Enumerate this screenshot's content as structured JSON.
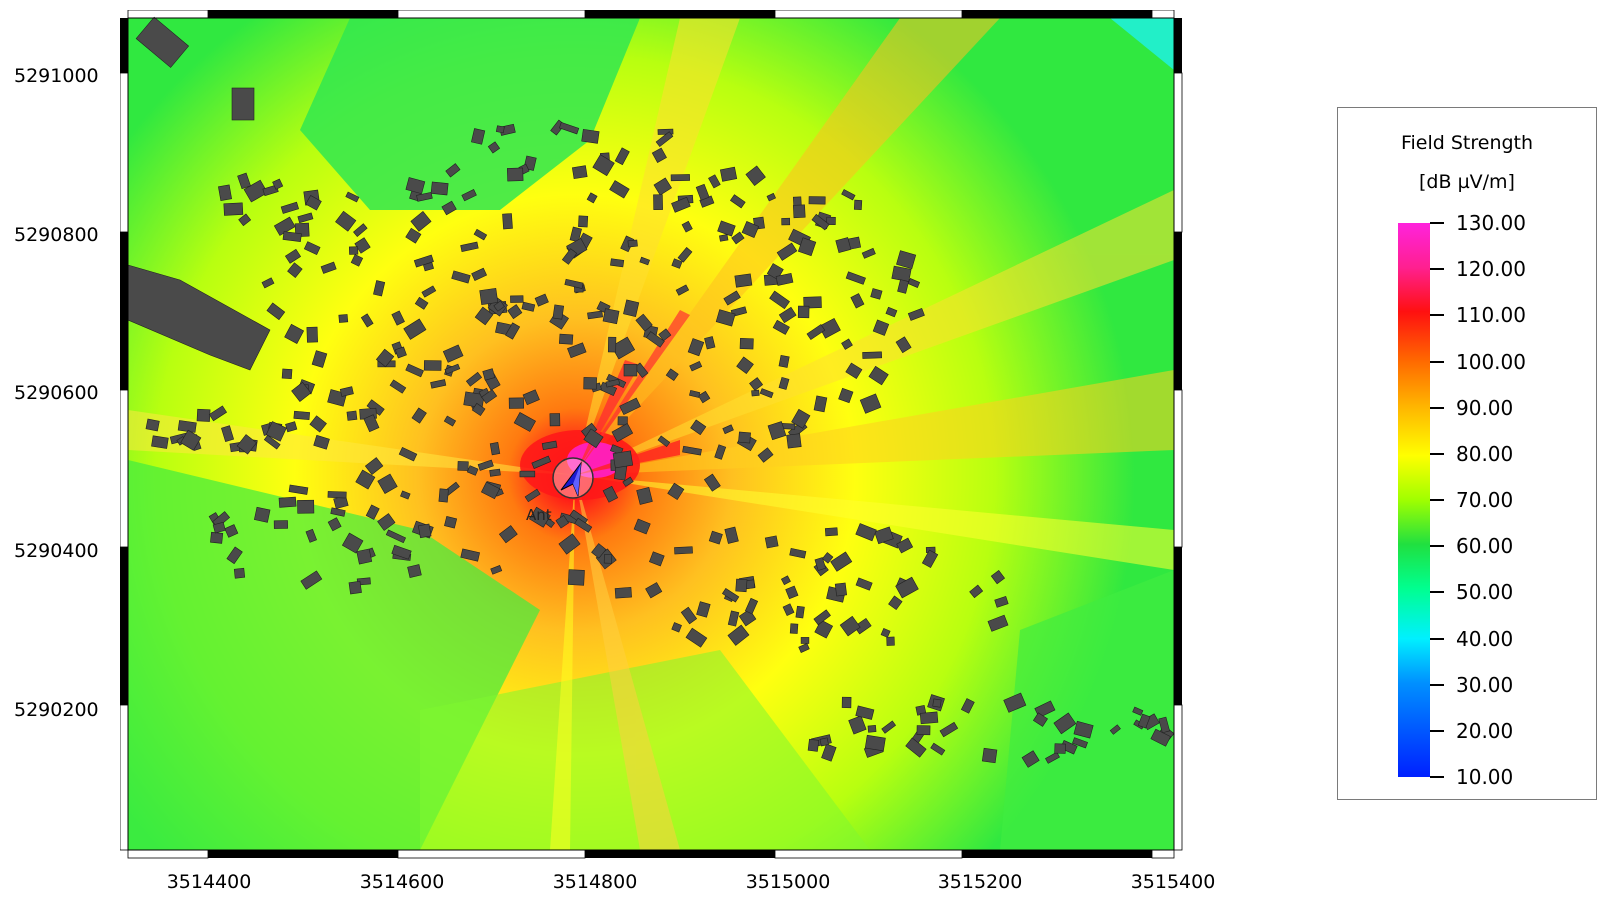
{
  "map": {
    "x_axis_labels": [
      "3514400",
      "3514600",
      "3514800",
      "3515000",
      "3515200",
      "3515400"
    ],
    "y_axis_labels": [
      "5291000",
      "5290800",
      "5290600",
      "5290400",
      "5290200"
    ],
    "antenna_label": "Ant",
    "antenna_icon": "antenna-arrow-icon"
  },
  "legend": {
    "title": "Field Strength",
    "unit": "[dB µV/m]",
    "values": [
      "130.00",
      "120.00",
      "110.00",
      "100.00",
      "90.00",
      "80.00",
      "70.00",
      "60.00",
      "50.00",
      "40.00",
      "30.00",
      "20.00",
      "10.00"
    ],
    "colors": {
      "max": "#ff22dd",
      "high": "#ff1010",
      "mid": "#ffff00",
      "low_mid": "#20e040",
      "low": "#00f0ff",
      "min": "#0020ff"
    }
  }
}
